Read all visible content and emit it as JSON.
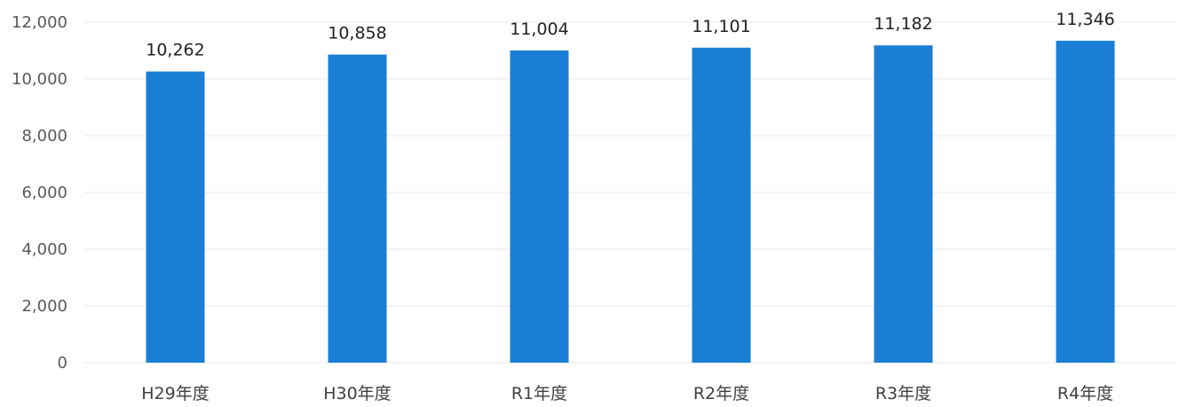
{
  "chart_data": {
    "type": "bar",
    "categories": [
      "H29年度",
      "H30年度",
      "R1年度",
      "R2年度",
      "R3年度",
      "R4年度"
    ],
    "values": [
      10262,
      10858,
      11004,
      11101,
      11182,
      11346
    ],
    "data_labels": [
      "10,262",
      "10,858",
      "11,004",
      "11,101",
      "11,182",
      "11,346"
    ],
    "y_ticks": [
      0,
      2000,
      4000,
      6000,
      8000,
      10000,
      12000
    ],
    "y_tick_labels": [
      "0",
      "2,000",
      "4,000",
      "6,000",
      "8,000",
      "10,000",
      "12,000"
    ],
    "ylim": [
      0,
      12000
    ],
    "grid": true,
    "legend": "none",
    "bar_color": "#1a7fd4",
    "grid_color": "#e8e8e8"
  }
}
